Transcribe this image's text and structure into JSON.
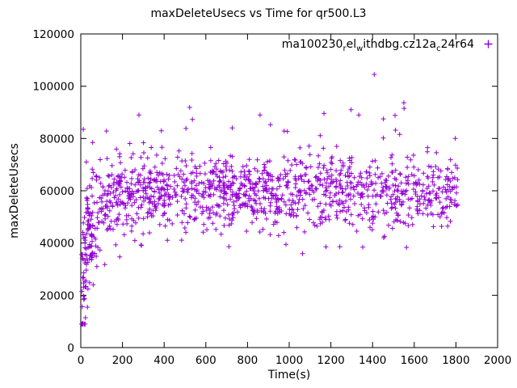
{
  "page": {
    "background": "#ffffff"
  },
  "chart_data": {
    "type": "scatter",
    "title": "maxDeleteUsecs vs Time for qr500.L3",
    "xlabel": "Time(s)",
    "ylabel": "maxDeleteUsecs",
    "xlim": [
      0,
      2000
    ],
    "ylim": [
      0,
      120000
    ],
    "x_ticks": [
      0,
      200,
      400,
      600,
      800,
      1000,
      1200,
      1400,
      1600,
      1800,
      2000
    ],
    "y_ticks": [
      0,
      20000,
      40000,
      60000,
      80000,
      100000,
      120000
    ],
    "grid": false,
    "legend": {
      "position": "top-right-inside",
      "label": "ma100230_rel_withdbg.cz12a_c24r64",
      "label_segments": [
        {
          "text": "ma100230",
          "sub": false
        },
        {
          "text": "r",
          "sub": true
        },
        {
          "text": "el",
          "sub": false
        },
        {
          "text": "w",
          "sub": true
        },
        {
          "text": "ithdbg.cz12a",
          "sub": false
        },
        {
          "text": "c",
          "sub": true
        },
        {
          "text": "24r64",
          "sub": false
        }
      ],
      "marker": "plus"
    },
    "series": [
      {
        "name": "ma100230_rel_withdbg.cz12a_c24r64",
        "color": "#9400d3",
        "marker": "plus",
        "trend_summary": "rises from ~20000 usecs near t=0 to a dense steady band centered near 60000 usecs (roughly 45000-75000) from t≈200 through t≈1800",
        "notable_points": [
          [
            1408,
            104500
          ],
          [
            12,
            83500
          ],
          [
            57,
            78500
          ],
          [
            860,
            89000
          ],
          [
            1297,
            91000
          ],
          [
            1452,
            87500
          ],
          [
            1551,
            91500
          ],
          [
            1797,
            80000
          ]
        ],
        "gen": {
          "seed": 1337,
          "n_base": 1250,
          "x_min": 3,
          "x_max": 1810,
          "n_early_extra": 70,
          "early_x_max": 60,
          "mean_plateau": 59500,
          "mean_dip": 42000,
          "mean_tau": 45,
          "std_base": 7300,
          "std_extra": 6500,
          "std_tau": 90,
          "n_outliers": 14,
          "outlier_y_min": 78000,
          "outlier_y_max": 94000,
          "outlier_x_min": 120,
          "outlier_x_max": 1800,
          "y_min_clamp": 9000,
          "y_max_clamp": 112000
        }
      }
    ]
  }
}
